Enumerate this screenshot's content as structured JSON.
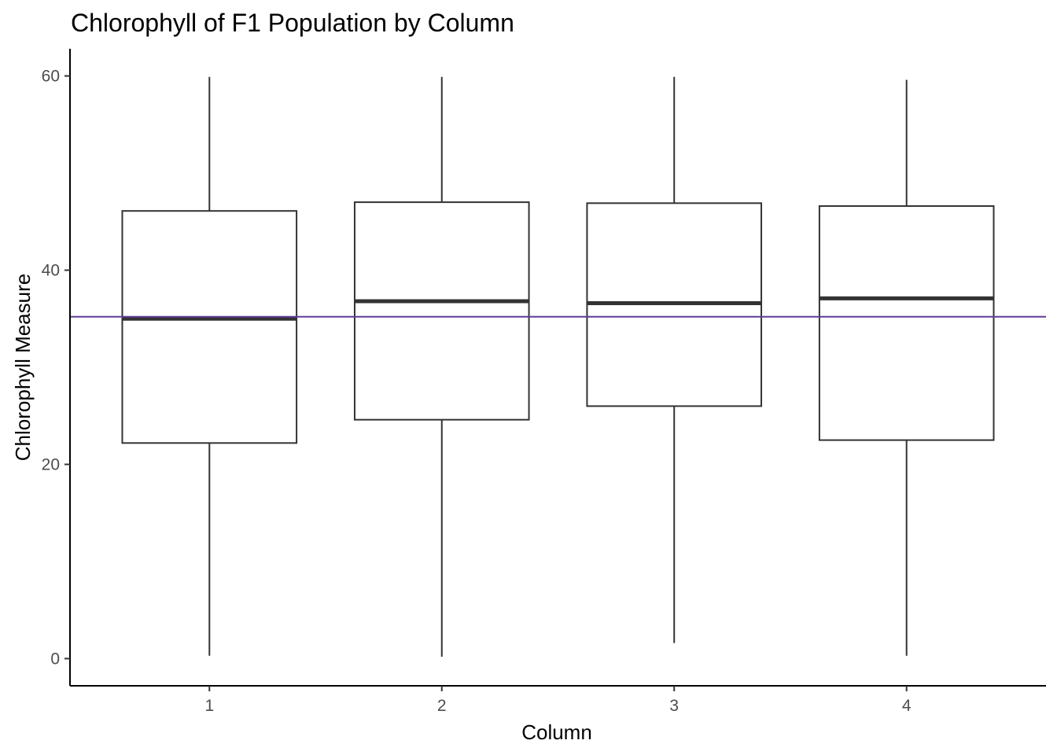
{
  "chart_data": {
    "type": "box",
    "title": "Chlorophyll of F1 Population by Column",
    "xlabel": "Column",
    "ylabel": "Chlorophyll Measure",
    "categories": [
      "1",
      "2",
      "3",
      "4"
    ],
    "ylim": [
      -2.8,
      62.8
    ],
    "yticks": [
      0,
      20,
      40,
      60
    ],
    "grid": false,
    "legend": "none",
    "boxes": [
      {
        "category": "1",
        "min": 0.3,
        "q1": 22.2,
        "median": 35.0,
        "q3": 46.1,
        "max": 59.9
      },
      {
        "category": "2",
        "min": 0.2,
        "q1": 24.6,
        "median": 36.8,
        "q3": 47.0,
        "max": 59.9
      },
      {
        "category": "3",
        "min": 1.6,
        "q1": 26.0,
        "median": 36.6,
        "q3": 46.9,
        "max": 59.9
      },
      {
        "category": "4",
        "min": 0.3,
        "q1": 22.5,
        "median": 37.1,
        "q3": 46.6,
        "max": 59.6
      }
    ],
    "reference_line": {
      "y": 35.2,
      "color": "#5e3c99"
    },
    "colors": {
      "box_stroke": "#333333",
      "median": "#333333",
      "axis": "#000000",
      "tick_label": "#4d4d4d"
    }
  }
}
